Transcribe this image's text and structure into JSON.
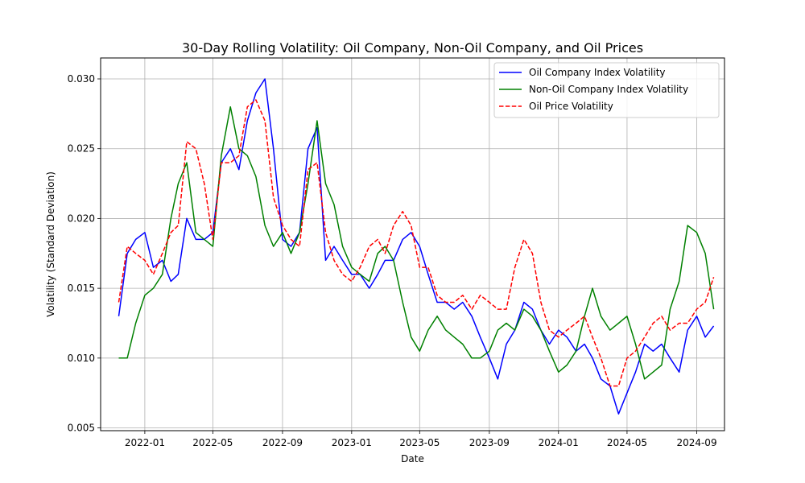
{
  "chart_data": {
    "type": "line",
    "title": "30-Day Rolling Volatility: Oil Company, Non-Oil Company, and Oil Prices",
    "xlabel": "Date",
    "ylabel": "Volatility (Standard Deviation)",
    "xlim": [
      "2021-10-15",
      "2024-10-20"
    ],
    "ylim": [
      0.0048,
      0.0315
    ],
    "x_ticks": [
      "2022-01",
      "2022-05",
      "2022-09",
      "2023-01",
      "2023-05",
      "2023-09",
      "2024-01",
      "2024-05",
      "2024-09"
    ],
    "y_ticks": [
      "0.005",
      "0.010",
      "0.015",
      "0.020",
      "0.025",
      "0.030"
    ],
    "grid": true,
    "legend_position": "top-right",
    "x": [
      "2021-11-16",
      "2021-12-01",
      "2021-12-16",
      "2022-01-01",
      "2022-01-16",
      "2022-02-01",
      "2022-02-16",
      "2022-03-01",
      "2022-03-16",
      "2022-04-01",
      "2022-04-16",
      "2022-05-01",
      "2022-05-16",
      "2022-06-01",
      "2022-06-16",
      "2022-07-01",
      "2022-07-16",
      "2022-08-01",
      "2022-08-16",
      "2022-09-01",
      "2022-09-16",
      "2022-10-01",
      "2022-10-16",
      "2022-11-01",
      "2022-11-16",
      "2022-12-01",
      "2022-12-16",
      "2023-01-01",
      "2023-01-16",
      "2023-02-01",
      "2023-02-16",
      "2023-03-01",
      "2023-03-16",
      "2023-04-01",
      "2023-04-16",
      "2023-05-01",
      "2023-05-16",
      "2023-06-01",
      "2023-06-16",
      "2023-07-01",
      "2023-07-16",
      "2023-08-01",
      "2023-08-16",
      "2023-09-01",
      "2023-09-16",
      "2023-10-01",
      "2023-10-16",
      "2023-11-01",
      "2023-11-16",
      "2023-12-01",
      "2023-12-16",
      "2024-01-01",
      "2024-01-16",
      "2024-02-01",
      "2024-02-16",
      "2024-03-01",
      "2024-03-16",
      "2024-04-01",
      "2024-04-16",
      "2024-05-01",
      "2024-05-16",
      "2024-06-01",
      "2024-06-16",
      "2024-07-01",
      "2024-07-16",
      "2024-08-01",
      "2024-08-16",
      "2024-09-01",
      "2024-09-16",
      "2024-10-01"
    ],
    "series": [
      {
        "name": "Oil Company Index Volatility",
        "color": "#0000ff",
        "style": "solid",
        "values": [
          0.013,
          0.0175,
          0.0185,
          0.019,
          0.0165,
          0.017,
          0.0155,
          0.016,
          0.02,
          0.0185,
          0.0185,
          0.019,
          0.024,
          0.025,
          0.0235,
          0.027,
          0.029,
          0.03,
          0.025,
          0.0185,
          0.018,
          0.019,
          0.025,
          0.0265,
          0.017,
          0.018,
          0.017,
          0.016,
          0.016,
          0.015,
          0.016,
          0.017,
          0.017,
          0.0185,
          0.019,
          0.018,
          0.016,
          0.014,
          0.014,
          0.0135,
          0.014,
          0.013,
          0.0115,
          0.01,
          0.0085,
          0.011,
          0.012,
          0.014,
          0.0135,
          0.012,
          0.011,
          0.012,
          0.0115,
          0.0105,
          0.011,
          0.01,
          0.0085,
          0.008,
          0.006,
          0.0075,
          0.009,
          0.011,
          0.0105,
          0.011,
          0.01,
          0.009,
          0.012,
          0.013,
          0.0115,
          0.0123
        ]
      },
      {
        "name": "Non-Oil Company Index Volatility",
        "color": "#008000",
        "style": "solid",
        "values": [
          0.01,
          0.01,
          0.0125,
          0.0145,
          0.015,
          0.016,
          0.02,
          0.0225,
          0.024,
          0.019,
          0.0185,
          0.018,
          0.0245,
          0.028,
          0.025,
          0.0245,
          0.023,
          0.0195,
          0.018,
          0.019,
          0.0175,
          0.019,
          0.0225,
          0.027,
          0.0225,
          0.021,
          0.018,
          0.0165,
          0.016,
          0.0155,
          0.0175,
          0.018,
          0.017,
          0.014,
          0.0115,
          0.0105,
          0.012,
          0.013,
          0.012,
          0.0115,
          0.011,
          0.01,
          0.01,
          0.0105,
          0.012,
          0.0125,
          0.012,
          0.0135,
          0.013,
          0.012,
          0.0105,
          0.009,
          0.0095,
          0.0105,
          0.013,
          0.015,
          0.013,
          0.012,
          0.0125,
          0.013,
          0.011,
          0.0085,
          0.009,
          0.0095,
          0.0135,
          0.0155,
          0.0195,
          0.019,
          0.0175,
          0.0135
        ]
      },
      {
        "name": "Oil Price Volatility",
        "color": "#ff0000",
        "style": "dashed",
        "values": [
          0.014,
          0.018,
          0.0175,
          0.017,
          0.016,
          0.0175,
          0.019,
          0.0195,
          0.0255,
          0.025,
          0.0225,
          0.0185,
          0.024,
          0.024,
          0.0245,
          0.028,
          0.0285,
          0.027,
          0.0215,
          0.0195,
          0.0185,
          0.018,
          0.0235,
          0.024,
          0.019,
          0.017,
          0.016,
          0.0155,
          0.0165,
          0.018,
          0.0185,
          0.0175,
          0.0195,
          0.0205,
          0.0195,
          0.0165,
          0.0165,
          0.0145,
          0.014,
          0.014,
          0.0145,
          0.0135,
          0.0145,
          0.014,
          0.0135,
          0.0135,
          0.0165,
          0.0185,
          0.0175,
          0.014,
          0.012,
          0.0115,
          0.012,
          0.0125,
          0.013,
          0.0115,
          0.01,
          0.008,
          0.008,
          0.01,
          0.0105,
          0.0115,
          0.0125,
          0.013,
          0.012,
          0.0125,
          0.0125,
          0.0135,
          0.014,
          0.0158
        ]
      }
    ]
  }
}
